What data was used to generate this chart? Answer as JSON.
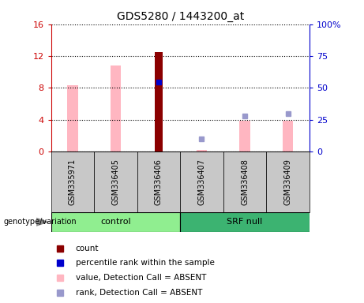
{
  "title": "GDS5280 / 1443200_at",
  "samples": [
    "GSM335971",
    "GSM336405",
    "GSM336406",
    "GSM336407",
    "GSM336408",
    "GSM336409"
  ],
  "groups": [
    "control",
    "control",
    "control",
    "SRF null",
    "SRF null",
    "SRF null"
  ],
  "count_values": [
    null,
    null,
    12.5,
    null,
    null,
    null
  ],
  "percentile_values": [
    null,
    null,
    8.7,
    null,
    null,
    null
  ],
  "absent_value_bars": [
    8.3,
    10.8,
    null,
    0.18,
    3.9,
    3.9
  ],
  "absent_rank_dots_pct": [
    null,
    null,
    null,
    10.0,
    28.0,
    30.0
  ],
  "ylim_left": [
    0,
    16
  ],
  "ylim_right": [
    0,
    100
  ],
  "yticks_left": [
    0,
    4,
    8,
    12,
    16
  ],
  "yticks_right": [
    0,
    25,
    50,
    75,
    100
  ],
  "ytick_labels_right": [
    "0",
    "25",
    "50",
    "75",
    "100%"
  ],
  "color_count": "#8B0000",
  "color_percentile": "#0000CD",
  "color_absent_value": "#FFB6C1",
  "color_absent_rank": "#9999CC",
  "color_left_axis": "#CC0000",
  "color_right_axis": "#0000CC",
  "color_sample_box": "#C8C8C8",
  "color_control_bg": "#90EE90",
  "color_srf_bg": "#3CB371",
  "legend_items": [
    {
      "label": "count",
      "color": "#8B0000"
    },
    {
      "label": "percentile rank within the sample",
      "color": "#0000CD"
    },
    {
      "label": "value, Detection Call = ABSENT",
      "color": "#FFB6C1"
    },
    {
      "label": "rank, Detection Call = ABSENT",
      "color": "#9999CC"
    }
  ],
  "genotype_label": "genotype/variation"
}
